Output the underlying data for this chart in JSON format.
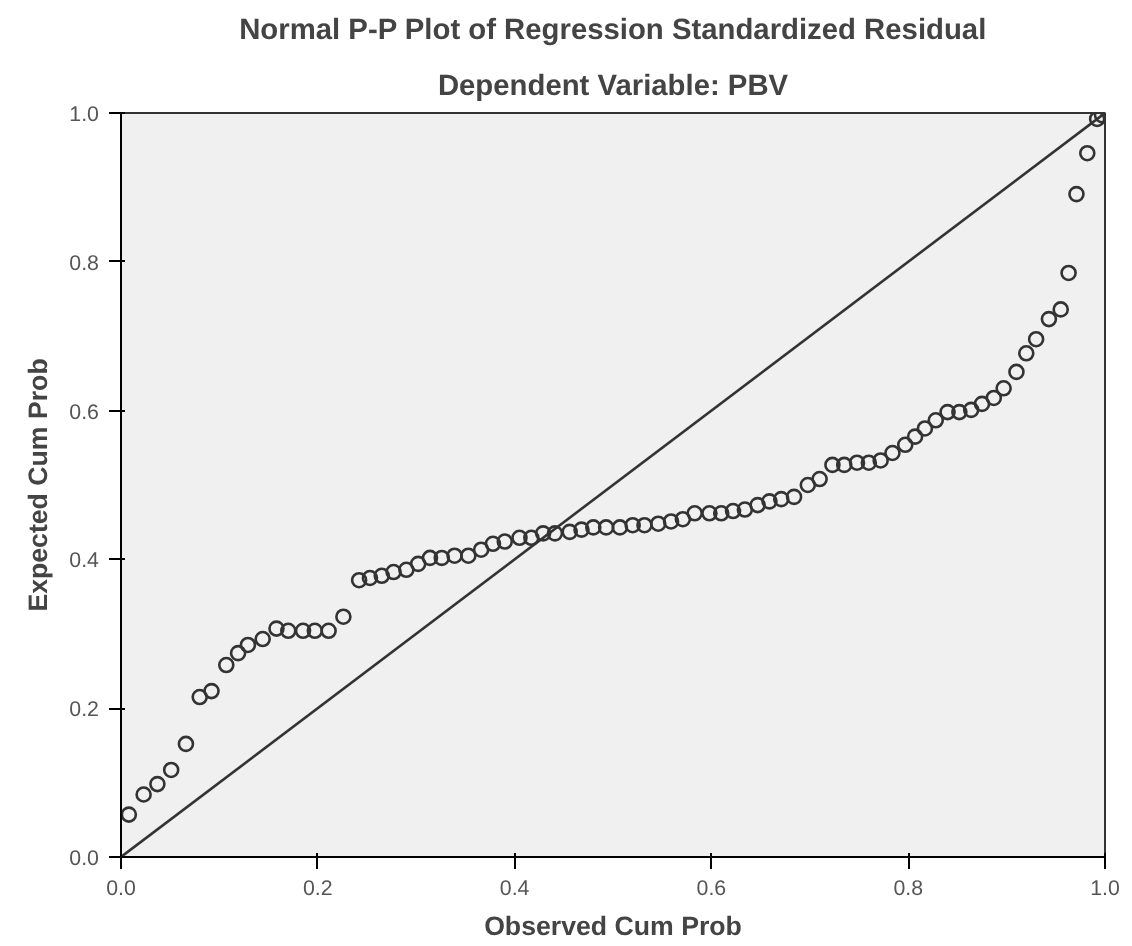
{
  "chart_data": {
    "type": "scatter",
    "title": "Normal P-P Plot of Regression Standardized Residual",
    "subtitle": "Dependent Variable: PBV",
    "xlabel": "Observed Cum Prob",
    "ylabel": "Expected Cum Prob",
    "xlim": [
      0,
      1
    ],
    "ylim": [
      0,
      1
    ],
    "xticks": [
      {
        "value": 0,
        "label": "0.0"
      },
      0.2,
      0.4,
      0.6,
      0.8,
      {
        "value": 1,
        "label": "1.0"
      }
    ],
    "yticks": [
      {
        "value": 0,
        "label": "0.0"
      },
      0.2,
      0.4,
      0.6,
      0.8,
      {
        "value": 1,
        "label": "1.0"
      }
    ],
    "grid": false,
    "series": [
      {
        "marker": "circle",
        "color": "#333333",
        "x": [
          0.008,
          0.023,
          0.037,
          0.051,
          0.066,
          0.08,
          0.092,
          0.107,
          0.119,
          0.129,
          0.144,
          0.158,
          0.17,
          0.185,
          0.197,
          0.211,
          0.226,
          0.242,
          0.253,
          0.265,
          0.277,
          0.29,
          0.302,
          0.314,
          0.326,
          0.339,
          0.353,
          0.366,
          0.378,
          0.39,
          0.405,
          0.417,
          0.429,
          0.441,
          0.456,
          0.468,
          0.48,
          0.493,
          0.507,
          0.52,
          0.532,
          0.546,
          0.559,
          0.571,
          0.583,
          0.598,
          0.61,
          0.622,
          0.634,
          0.647,
          0.659,
          0.671,
          0.684,
          0.698,
          0.71,
          0.723,
          0.735,
          0.748,
          0.76,
          0.772,
          0.784,
          0.797,
          0.807,
          0.817,
          0.828,
          0.84,
          0.852,
          0.864,
          0.875,
          0.887,
          0.897,
          0.91,
          0.92,
          0.93,
          0.943,
          0.955,
          0.963,
          0.971,
          0.982,
          0.992,
          0.997
        ],
        "values": [
          0.057,
          0.084,
          0.098,
          0.117,
          0.152,
          0.215,
          0.223,
          0.258,
          0.274,
          0.285,
          0.293,
          0.307,
          0.304,
          0.304,
          0.304,
          0.304,
          0.323,
          0.372,
          0.375,
          0.378,
          0.383,
          0.386,
          0.394,
          0.402,
          0.402,
          0.405,
          0.405,
          0.413,
          0.421,
          0.424,
          0.429,
          0.429,
          0.435,
          0.435,
          0.437,
          0.44,
          0.443,
          0.443,
          0.443,
          0.446,
          0.446,
          0.448,
          0.451,
          0.454,
          0.462,
          0.462,
          0.462,
          0.465,
          0.467,
          0.473,
          0.478,
          0.481,
          0.484,
          0.5,
          0.508,
          0.527,
          0.527,
          0.53,
          0.53,
          0.533,
          0.543,
          0.554,
          0.565,
          0.576,
          0.587,
          0.598,
          0.598,
          0.601,
          0.609,
          0.617,
          0.63,
          0.652,
          0.677,
          0.696,
          0.723,
          0.736,
          0.785,
          0.891,
          0.946,
          0.992,
          0.997
        ]
      },
      {
        "type": "line",
        "color": "#333333",
        "x": [
          0,
          1
        ],
        "values": [
          0,
          1
        ]
      }
    ]
  }
}
